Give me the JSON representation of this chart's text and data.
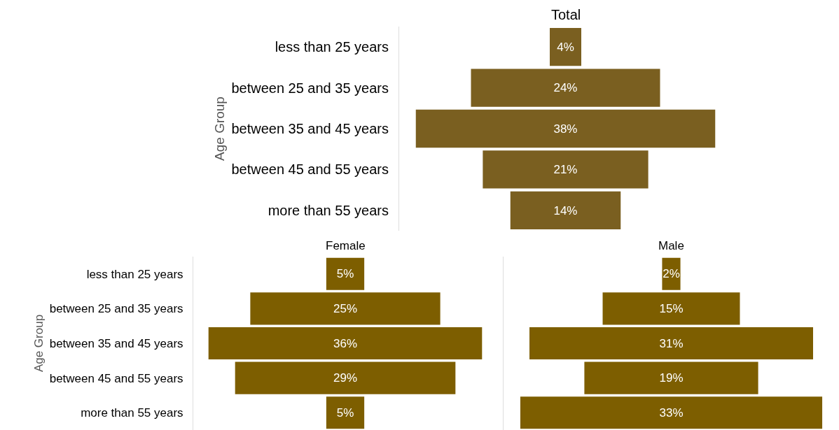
{
  "chart_data": [
    {
      "type": "other",
      "title": "Total",
      "ylabel": "Age Group",
      "categories": [
        "less than 25 years",
        "between 25 and 35 years",
        "between 35 and 45 years",
        "between 45 and 55 years",
        "more than 55 years"
      ],
      "values": [
        4,
        24,
        38,
        21,
        14
      ],
      "value_labels": [
        "4%",
        "24%",
        "38%",
        "21%",
        "14%"
      ],
      "color": "#7a5f20"
    },
    {
      "type": "other",
      "title": "Female",
      "ylabel": "Age Group",
      "categories": [
        "less than 25 years",
        "between 25 and 35 years",
        "between 35 and 45 years",
        "between 45 and 55 years",
        "more than 55 years"
      ],
      "values": [
        5,
        25,
        36,
        29,
        5
      ],
      "value_labels": [
        "5%",
        "25%",
        "36%",
        "29%",
        "5%"
      ],
      "color": "#7d5e00"
    },
    {
      "type": "other",
      "title": "Male",
      "categories": [
        null,
        null,
        null,
        null,
        null
      ],
      "values": [
        2,
        15,
        31,
        19,
        33
      ],
      "value_labels": [
        "2%",
        "15%",
        "31%",
        "19%",
        "33%"
      ],
      "color": "#7d5e00"
    }
  ]
}
